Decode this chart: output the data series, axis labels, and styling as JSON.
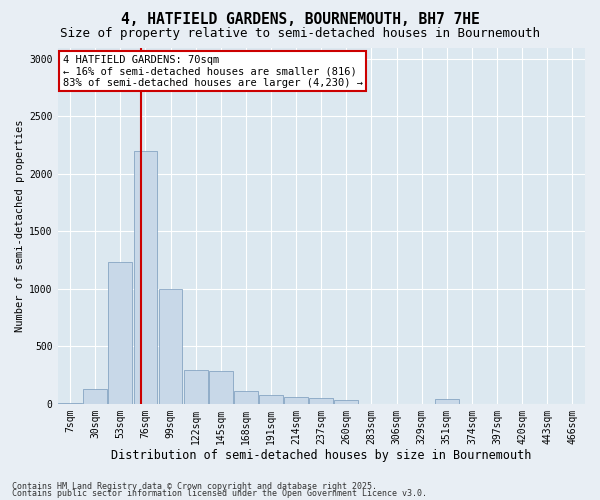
{
  "title": "4, HATFIELD GARDENS, BOURNEMOUTH, BH7 7HE",
  "subtitle": "Size of property relative to semi-detached houses in Bournemouth",
  "xlabel": "Distribution of semi-detached houses by size in Bournemouth",
  "ylabel": "Number of semi-detached properties",
  "footnote1": "Contains HM Land Registry data © Crown copyright and database right 2025.",
  "footnote2": "Contains public sector information licensed under the Open Government Licence v3.0.",
  "annotation_title": "4 HATFIELD GARDENS: 70sqm",
  "annotation_line1": "← 16% of semi-detached houses are smaller (816)",
  "annotation_line2": "83% of semi-detached houses are larger (4,230) →",
  "bar_color": "#c8d8e8",
  "bar_edge_color": "#7799bb",
  "annotation_box_color": "#ffffff",
  "annotation_box_edge": "#cc0000",
  "vline_color": "#cc0000",
  "bg_color": "#dce8f0",
  "fig_bg_color": "#e8eef4",
  "grid_color": "#ffffff",
  "categories": [
    "7sqm",
    "30sqm",
    "53sqm",
    "76sqm",
    "99sqm",
    "122sqm",
    "145sqm",
    "168sqm",
    "191sqm",
    "214sqm",
    "237sqm",
    "260sqm",
    "283sqm",
    "306sqm",
    "329sqm",
    "351sqm",
    "374sqm",
    "397sqm",
    "420sqm",
    "443sqm",
    "466sqm"
  ],
  "values": [
    10,
    130,
    1230,
    2200,
    1000,
    290,
    285,
    110,
    80,
    60,
    50,
    30,
    0,
    0,
    0,
    40,
    0,
    0,
    0,
    0,
    0
  ],
  "vline_x_index": 2.83,
  "ylim": [
    0,
    3100
  ],
  "yticks": [
    0,
    500,
    1000,
    1500,
    2000,
    2500,
    3000
  ],
  "title_fontsize": 10.5,
  "subtitle_fontsize": 9,
  "ylabel_fontsize": 7.5,
  "xlabel_fontsize": 8.5,
  "tick_fontsize": 7,
  "annot_fontsize": 7.5,
  "footnote_fontsize": 6
}
